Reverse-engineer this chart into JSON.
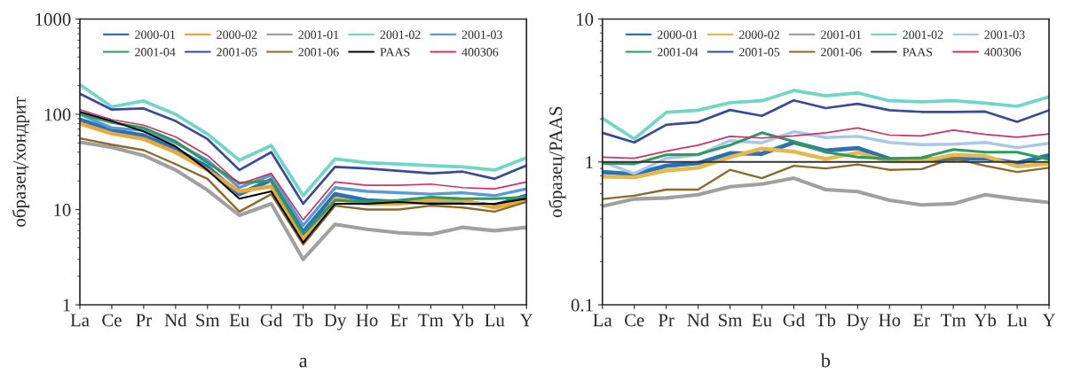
{
  "chart_data": [
    {
      "type": "line",
      "ylabel": "образец/хондрит",
      "log": "y",
      "ylim": [
        1,
        1000
      ],
      "yticks": [
        1,
        10,
        100,
        1000
      ],
      "legend": "top",
      "annotations": [
        "a"
      ],
      "categories": [
        "La",
        "Ce",
        "Pr",
        "Nd",
        "Sm",
        "Eu",
        "Gd",
        "Tb",
        "Dy",
        "Ho",
        "Er",
        "Tm",
        "Yb",
        "Lu",
        "Y"
      ],
      "series": [
        {
          "name": "2000-01",
          "color": "#2a72b5",
          "values": [
            88,
            68,
            60,
            43,
            28,
            14.5,
            20.5,
            5.8,
            14.5,
            12.5,
            12,
            12,
            12,
            11,
            14
          ]
        },
        {
          "name": "2000-02",
          "color": "#e8a83a",
          "values": [
            80,
            63,
            55,
            40,
            26,
            15.5,
            17.5,
            4.8,
            13,
            11.5,
            11.5,
            12.5,
            12.5,
            10.5,
            12.5
          ]
        },
        {
          "name": "2001-01",
          "color": "#a0a0a0",
          "values": [
            51,
            45,
            37,
            26,
            16,
            8.7,
            11.5,
            3,
            7,
            6.2,
            5.7,
            5.5,
            6.5,
            6,
            6.5
          ]
        },
        {
          "name": "2001-02",
          "color": "#6fd6c8",
          "values": [
            205,
            120,
            138,
            100,
            62,
            33,
            47,
            14,
            34,
            31,
            30,
            29,
            28,
            26,
            35
          ]
        },
        {
          "name": "2001-03",
          "color": "#5b9bd5",
          "values": [
            100,
            72,
            68,
            50,
            33,
            17,
            23,
            6.8,
            17,
            15.5,
            15,
            14.5,
            15,
            14,
            16.5
          ]
        },
        {
          "name": "2001-04",
          "color": "#2e9a5e",
          "values": [
            102,
            82,
            72,
            52,
            31,
            19,
            20,
            5.5,
            12.5,
            12,
            12.5,
            13.5,
            13,
            13,
            13.5
          ]
        },
        {
          "name": "2001-05",
          "color": "#3a4a9a",
          "values": [
            165,
            112,
            115,
            85,
            55,
            26,
            40,
            11.5,
            28,
            27,
            25.5,
            24,
            25,
            21,
            29
          ]
        },
        {
          "name": "2001-06",
          "color": "#8b6a2a",
          "values": [
            56,
            48,
            42,
            30,
            21,
            9.5,
            14.5,
            4.3,
            11,
            10,
            10,
            11,
            10.5,
            9.5,
            12
          ]
        },
        {
          "name": "PAAS",
          "color": "#000000",
          "values": [
            106,
            85,
            66,
            46,
            26,
            13,
            15.5,
            4.5,
            11.5,
            11.5,
            12,
            11.5,
            11.5,
            11.5,
            13
          ]
        },
        {
          "name": "400306",
          "color": "#cc3366",
          "values": [
            112,
            88,
            77,
            58,
            37,
            18.5,
            24,
            7.8,
            19.5,
            18,
            18,
            18.5,
            17,
            16.5,
            19.5
          ]
        }
      ]
    },
    {
      "type": "line",
      "ylabel": "образец/PAAS",
      "log": "y",
      "ylim": [
        0.1,
        10
      ],
      "yticks": [
        0.1,
        1,
        10
      ],
      "legend": "top",
      "annotations": [
        "b"
      ],
      "categories": [
        "La",
        "Ce",
        "Pr",
        "Nd",
        "Sm",
        "Eu",
        "Gd",
        "Tb",
        "Dy",
        "Ho",
        "Er",
        "Tm",
        "Yb",
        "Lu",
        "Y"
      ],
      "series": [
        {
          "name": "2000-01",
          "color": "#2a72b5",
          "values": [
            0.85,
            0.82,
            0.94,
            0.98,
            1.15,
            1.14,
            1.37,
            1.2,
            1.25,
            1.05,
            1.04,
            1.05,
            1.06,
            0.98,
            1.11
          ]
        },
        {
          "name": "2000-02",
          "color": "#e8b84a",
          "values": [
            0.79,
            0.78,
            0.87,
            0.91,
            1.08,
            1.24,
            1.18,
            1.05,
            1.16,
            1.01,
            1.01,
            1.12,
            1.1,
            0.93,
            0.97
          ]
        },
        {
          "name": "2001-01",
          "color": "#a0a0a0",
          "values": [
            0.49,
            0.55,
            0.56,
            0.59,
            0.67,
            0.7,
            0.77,
            0.64,
            0.62,
            0.54,
            0.5,
            0.51,
            0.59,
            0.55,
            0.52
          ]
        },
        {
          "name": "2001-02",
          "color": "#6fd6c8",
          "values": [
            2.02,
            1.45,
            2.22,
            2.3,
            2.6,
            2.68,
            3.16,
            2.9,
            3.04,
            2.68,
            2.64,
            2.68,
            2.58,
            2.45,
            2.85
          ]
        },
        {
          "name": "2001-03",
          "color": "#a8c8e8",
          "values": [
            1.0,
            0.83,
            1.06,
            1.12,
            1.41,
            1.36,
            1.63,
            1.48,
            1.51,
            1.37,
            1.32,
            1.33,
            1.37,
            1.26,
            1.35
          ]
        },
        {
          "name": "2001-04",
          "color": "#2e9a5e",
          "values": [
            0.98,
            0.97,
            1.12,
            1.13,
            1.31,
            1.6,
            1.39,
            1.17,
            1.08,
            1.05,
            1.07,
            1.22,
            1.17,
            1.17,
            1.04
          ]
        },
        {
          "name": "2001-05",
          "color": "#3a4a9a",
          "values": [
            1.6,
            1.37,
            1.82,
            1.9,
            2.31,
            2.1,
            2.7,
            2.38,
            2.55,
            2.3,
            2.24,
            2.24,
            2.25,
            1.91,
            2.3
          ]
        },
        {
          "name": "2001-06",
          "color": "#8b6a2a",
          "values": [
            0.55,
            0.58,
            0.64,
            0.64,
            0.88,
            0.77,
            0.94,
            0.9,
            0.96,
            0.88,
            0.89,
            1.06,
            0.94,
            0.85,
            0.91
          ]
        },
        {
          "name": "PAAS",
          "color": "#333333",
          "values": [
            1,
            1,
            1,
            1,
            1,
            1,
            1,
            1,
            1,
            1,
            1,
            1,
            1,
            1,
            1
          ]
        },
        {
          "name": "400306",
          "color": "#cc3366",
          "values": [
            1.08,
            1.06,
            1.19,
            1.31,
            1.51,
            1.47,
            1.52,
            1.6,
            1.73,
            1.54,
            1.52,
            1.67,
            1.56,
            1.49,
            1.57
          ]
        }
      ]
    }
  ]
}
